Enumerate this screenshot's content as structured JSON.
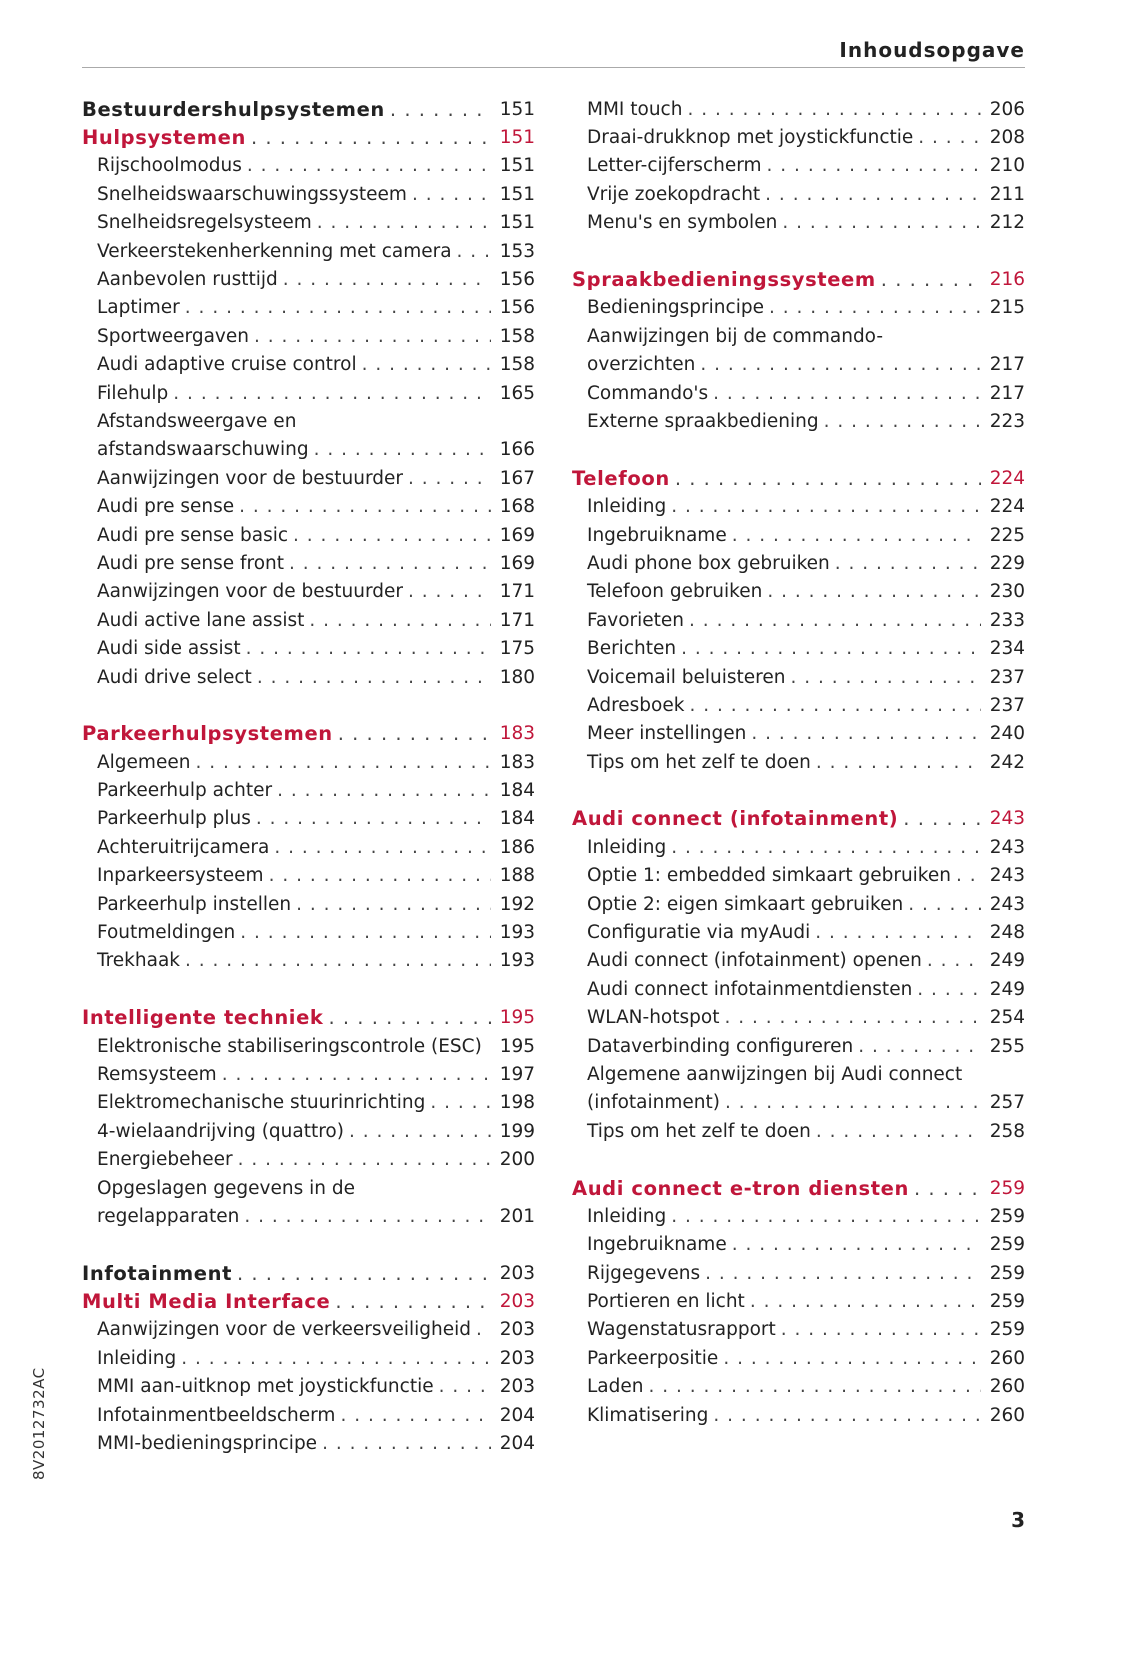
{
  "header": {
    "title": "Inhoudsopgave"
  },
  "accent_color": "#c0163a",
  "side_code": "8V2012732AC",
  "page_number": "3",
  "left": [
    {
      "type": "h1",
      "text": "Bestuurdershulpsystemen",
      "page": "151"
    },
    {
      "type": "h2",
      "text": "Hulpsystemen",
      "page": "151"
    },
    {
      "type": "item",
      "text": "Rijschoolmodus",
      "page": "151"
    },
    {
      "type": "item",
      "text": "Snelheidswaarschuwingssysteem",
      "page": "151"
    },
    {
      "type": "item",
      "text": "Snelheidsregelsysteem",
      "page": "151"
    },
    {
      "type": "item",
      "text": "Verkeerstekenherkenning met camera",
      "page": "153"
    },
    {
      "type": "item",
      "text": "Aanbevolen rusttijd",
      "page": "156"
    },
    {
      "type": "item",
      "text": "Laptimer",
      "page": "156"
    },
    {
      "type": "item",
      "text": "Sportweergaven",
      "page": "158"
    },
    {
      "type": "item",
      "text": "Audi adaptive cruise control",
      "page": "158"
    },
    {
      "type": "item",
      "text": "Filehulp",
      "page": "165"
    },
    {
      "type": "cont",
      "text": "Afstandsweergave en"
    },
    {
      "type": "item",
      "text": "afstandswaarschuwing",
      "page": "166"
    },
    {
      "type": "item",
      "text": "Aanwijzingen voor de bestuurder",
      "page": "167"
    },
    {
      "type": "item",
      "text": "Audi pre sense",
      "page": "168"
    },
    {
      "type": "item",
      "text": "Audi pre sense basic",
      "page": "169"
    },
    {
      "type": "item",
      "text": "Audi pre sense front",
      "page": "169"
    },
    {
      "type": "item",
      "text": "Aanwijzingen voor de bestuurder",
      "page": "171"
    },
    {
      "type": "item",
      "text": "Audi active lane assist",
      "page": "171"
    },
    {
      "type": "item",
      "text": "Audi side assist",
      "page": "175"
    },
    {
      "type": "item",
      "text": "Audi drive select",
      "page": "180"
    },
    {
      "type": "blank"
    },
    {
      "type": "h2",
      "text": "Parkeerhulpsystemen",
      "page": "183"
    },
    {
      "type": "item",
      "text": "Algemeen",
      "page": "183"
    },
    {
      "type": "item",
      "text": "Parkeerhulp achter",
      "page": "184"
    },
    {
      "type": "item",
      "text": "Parkeerhulp plus",
      "page": "184"
    },
    {
      "type": "item",
      "text": "Achteruitrijcamera",
      "page": "186"
    },
    {
      "type": "item",
      "text": "Inparkeersysteem",
      "page": "188"
    },
    {
      "type": "item",
      "text": "Parkeerhulp instellen",
      "page": "192"
    },
    {
      "type": "item",
      "text": "Foutmeldingen",
      "page": "193"
    },
    {
      "type": "item",
      "text": "Trekhaak",
      "page": "193"
    },
    {
      "type": "blank"
    },
    {
      "type": "h2",
      "text": "Intelligente techniek",
      "page": "195"
    },
    {
      "type": "item",
      "text": "Elektronische stabiliseringscontrole (ESC)",
      "page": "195",
      "nolead": true
    },
    {
      "type": "item",
      "text": "Remsysteem",
      "page": "197"
    },
    {
      "type": "item",
      "text": "Elektromechanische stuurinrichting",
      "page": "198"
    },
    {
      "type": "item",
      "text": "4-wielaandrijving (quattro)",
      "page": "199"
    },
    {
      "type": "item",
      "text": "Energiebeheer",
      "page": "200"
    },
    {
      "type": "cont",
      "text": "Opgeslagen gegevens in de"
    },
    {
      "type": "item",
      "text": "regelapparaten",
      "page": "201"
    },
    {
      "type": "blank"
    },
    {
      "type": "h1",
      "text": "Infotainment",
      "page": "203"
    },
    {
      "type": "h2",
      "text": "Multi Media Interface",
      "page": "203"
    },
    {
      "type": "item",
      "text": "Aanwijzingen voor de verkeersveiligheid",
      "page": "203"
    },
    {
      "type": "item",
      "text": "Inleiding",
      "page": "203"
    },
    {
      "type": "item",
      "text": "MMI aan-uitknop met joystickfunctie",
      "page": "203"
    },
    {
      "type": "item",
      "text": "Infotainmentbeeldscherm",
      "page": "204"
    },
    {
      "type": "item",
      "text": "MMI-bedieningsprincipe",
      "page": "204"
    }
  ],
  "right": [
    {
      "type": "item",
      "text": "MMI touch",
      "page": "206"
    },
    {
      "type": "item",
      "text": "Draai-drukknop met joystickfunctie",
      "page": "208"
    },
    {
      "type": "item",
      "text": "Letter-cijferscherm",
      "page": "210"
    },
    {
      "type": "item",
      "text": "Vrije zoekopdracht",
      "page": "211"
    },
    {
      "type": "item",
      "text": "Menu's en symbolen",
      "page": "212"
    },
    {
      "type": "blank"
    },
    {
      "type": "h2",
      "text": "Spraakbedieningssysteem",
      "page": "216"
    },
    {
      "type": "item",
      "text": "Bedieningsprincipe",
      "page": "215"
    },
    {
      "type": "cont",
      "text": "Aanwijzingen bij de commando-"
    },
    {
      "type": "item",
      "text": "overzichten",
      "page": "217"
    },
    {
      "type": "item",
      "text": "Commando's",
      "page": "217"
    },
    {
      "type": "item",
      "text": "Externe spraakbediening",
      "page": "223"
    },
    {
      "type": "blank"
    },
    {
      "type": "h2",
      "text": "Telefoon",
      "page": "224"
    },
    {
      "type": "item",
      "text": "Inleiding",
      "page": "224"
    },
    {
      "type": "item",
      "text": "Ingebruikname",
      "page": "225"
    },
    {
      "type": "item",
      "text": "Audi phone box gebruiken",
      "page": "229"
    },
    {
      "type": "item",
      "text": "Telefoon gebruiken",
      "page": "230"
    },
    {
      "type": "item",
      "text": "Favorieten",
      "page": "233"
    },
    {
      "type": "item",
      "text": "Berichten",
      "page": "234"
    },
    {
      "type": "item",
      "text": "Voicemail beluisteren",
      "page": "237"
    },
    {
      "type": "item",
      "text": "Adresboek",
      "page": "237"
    },
    {
      "type": "item",
      "text": "Meer instellingen",
      "page": "240"
    },
    {
      "type": "item",
      "text": "Tips om het zelf te doen",
      "page": "242"
    },
    {
      "type": "blank"
    },
    {
      "type": "h2",
      "text": "Audi connect (infotainment)",
      "page": "243"
    },
    {
      "type": "item",
      "text": "Inleiding",
      "page": "243"
    },
    {
      "type": "item",
      "text": "Optie 1: embedded simkaart gebruiken",
      "page": "243"
    },
    {
      "type": "item",
      "text": "Optie 2: eigen simkaart gebruiken",
      "page": "243"
    },
    {
      "type": "item",
      "text": "Configuratie via myAudi",
      "page": "248"
    },
    {
      "type": "item",
      "text": "Audi connect (infotainment) openen",
      "page": "249"
    },
    {
      "type": "item",
      "text": "Audi connect infotainmentdiensten",
      "page": "249"
    },
    {
      "type": "item",
      "text": "WLAN-hotspot",
      "page": "254"
    },
    {
      "type": "item",
      "text": "Dataverbinding configureren",
      "page": "255"
    },
    {
      "type": "cont",
      "text": "Algemene aanwijzingen bij Audi connect"
    },
    {
      "type": "item",
      "text": "(infotainment)",
      "page": "257"
    },
    {
      "type": "item",
      "text": "Tips om het zelf te doen",
      "page": "258"
    },
    {
      "type": "blank"
    },
    {
      "type": "h2",
      "text": "Audi connect e-tron diensten",
      "page": "259"
    },
    {
      "type": "item",
      "text": "Inleiding",
      "page": "259"
    },
    {
      "type": "item",
      "text": "Ingebruikname",
      "page": "259"
    },
    {
      "type": "item",
      "text": "Rijgegevens",
      "page": "259"
    },
    {
      "type": "item",
      "text": "Portieren en licht",
      "page": "259"
    },
    {
      "type": "item",
      "text": "Wagenstatusrapport",
      "page": "259"
    },
    {
      "type": "item",
      "text": "Parkeerpositie",
      "page": "260"
    },
    {
      "type": "item",
      "text": "Laden",
      "page": "260"
    },
    {
      "type": "item",
      "text": "Klimatisering",
      "page": "260"
    }
  ]
}
